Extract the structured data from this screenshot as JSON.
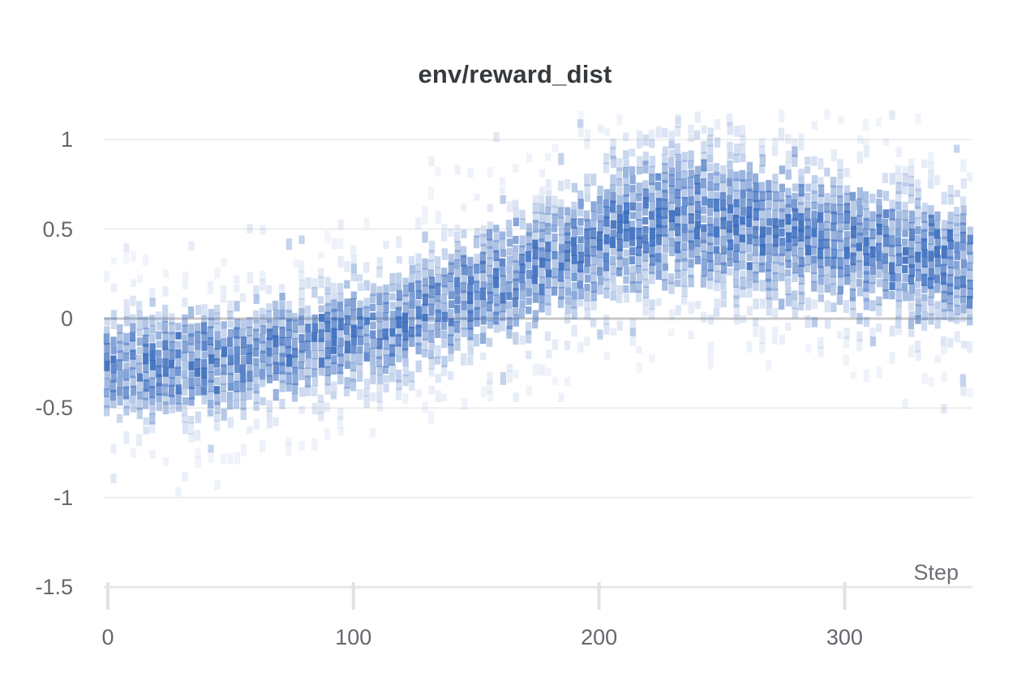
{
  "chart_data": {
    "type": "heatmap",
    "title": "env/reward_dist",
    "xlabel": "Step",
    "ylabel": "",
    "x_tick_labels": [
      "0",
      "100",
      "200",
      "300"
    ],
    "x_tick_values": [
      0,
      100,
      200,
      300
    ],
    "y_tick_labels": [
      "1",
      "0.5",
      "0",
      "-0.5",
      "-1",
      "-1.5"
    ],
    "y_tick_values": [
      1,
      0.5,
      0,
      -0.5,
      -1,
      -1.5
    ],
    "xlim": [
      0,
      352
    ],
    "ylim": [
      -1.5,
      1.15
    ],
    "grid": true,
    "legend": "none",
    "colors": {
      "cell_base": "#3a6cbe",
      "grid_line": "#ededed",
      "zero_line": "#c7c7c7",
      "axis_line": "#e7e7e7",
      "tick_mark": "#e2e2e2",
      "title_text": "#363a3e",
      "tick_text": "#65676f",
      "axis_title_text": "#6e7077"
    },
    "distribution": {
      "description": "Histogram-over-time heatmap of reward values per training step. Density mean rises from about -0.25 at step 0 to a peak of about 0.6 near step 235, then declines to about 0.33 by step 352. Sparse outliers reach 1.12 at the peak and -0.75 near step 0.",
      "keyframes": {
        "step": [
          0,
          40,
          80,
          110,
          150,
          185,
          210,
          235,
          265,
          300,
          330,
          352
        ],
        "mean": [
          -0.25,
          -0.22,
          -0.14,
          -0.04,
          0.17,
          0.36,
          0.52,
          0.6,
          0.53,
          0.44,
          0.36,
          0.33
        ],
        "sigma": [
          0.18,
          0.18,
          0.18,
          0.19,
          0.2,
          0.22,
          0.25,
          0.26,
          0.25,
          0.23,
          0.22,
          0.21
        ]
      },
      "value_cap": 1.13
    }
  }
}
